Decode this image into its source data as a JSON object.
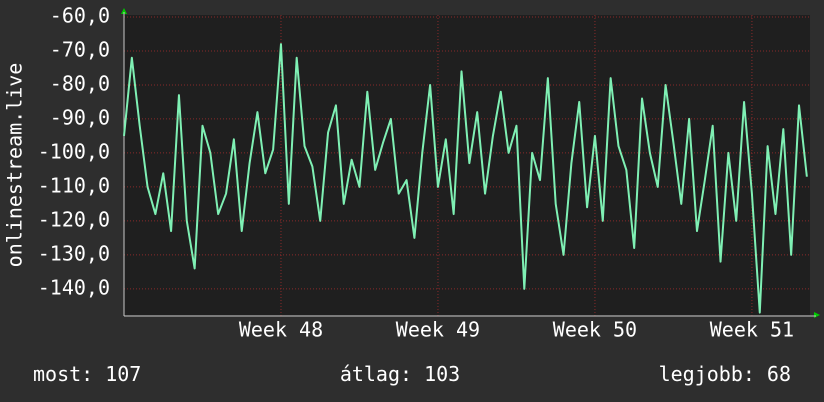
{
  "chart_data": {
    "type": "line",
    "y_label": "onlinestream.live",
    "xlim": [
      47,
      51.37
    ],
    "ylim": [
      -148,
      -60
    ],
    "xticks": [
      {
        "value": 48,
        "label": "Week 48"
      },
      {
        "value": 49,
        "label": "Week 49"
      },
      {
        "value": 50,
        "label": "Week 50"
      },
      {
        "value": 51,
        "label": "Week 51"
      }
    ],
    "yticks": [
      {
        "value": -60,
        "label": "-60,0"
      },
      {
        "value": -70,
        "label": "-70,0"
      },
      {
        "value": -80,
        "label": "-80,0"
      },
      {
        "value": -90,
        "label": "-90,0"
      },
      {
        "value": -100,
        "label": "-100,0"
      },
      {
        "value": -110,
        "label": "-110,0"
      },
      {
        "value": -120,
        "label": "-120,0"
      },
      {
        "value": -130,
        "label": "-130,0"
      },
      {
        "value": -140,
        "label": "-140,0"
      }
    ],
    "grid": true,
    "x": [
      47,
      47.05,
      47.1,
      47.15,
      47.2,
      47.25,
      47.3,
      47.35,
      47.4,
      47.45,
      47.5,
      47.55,
      47.6,
      47.65,
      47.7,
      47.75,
      47.8,
      47.85,
      47.9,
      47.95,
      48,
      48.05,
      48.1,
      48.15,
      48.2,
      48.25,
      48.3,
      48.35,
      48.4,
      48.45,
      48.5,
      48.55,
      48.6,
      48.65,
      48.7,
      48.75,
      48.8,
      48.85,
      48.9,
      48.95,
      49,
      49.05,
      49.1,
      49.15,
      49.2,
      49.25,
      49.3,
      49.35,
      49.4,
      49.45,
      49.5,
      49.55,
      49.6,
      49.65,
      49.7,
      49.75,
      49.8,
      49.85,
      49.9,
      49.95,
      50,
      50.05,
      50.1,
      50.15,
      50.2,
      50.25,
      50.3,
      50.35,
      50.4,
      50.45,
      50.5,
      50.55,
      50.6,
      50.65,
      50.7,
      50.75,
      50.8,
      50.85,
      50.9,
      50.95,
      51,
      51.05,
      51.1,
      51.15,
      51.2,
      51.25,
      51.3,
      51.35
    ],
    "series": [
      {
        "color": "#7ff0b4",
        "values": [
          -95,
          -72,
          -92,
          -110,
          -118,
          -106,
          -123,
          -83,
          -120,
          -134,
          -92,
          -100,
          -118,
          -112,
          -96,
          -123,
          -103,
          -88,
          -106,
          -99,
          -68,
          -115,
          -72,
          -98,
          -104,
          -120,
          -94,
          -86,
          -115,
          -102,
          -110,
          -82,
          -105,
          -97,
          -90,
          -112,
          -108,
          -125,
          -100,
          -80,
          -110,
          -96,
          -118,
          -76,
          -103,
          -88,
          -112,
          -95,
          -82,
          -100,
          -92,
          -140,
          -100,
          -108,
          -78,
          -115,
          -130,
          -103,
          -85,
          -116,
          -95,
          -120,
          -78,
          -98,
          -105,
          -128,
          -84,
          -100,
          -110,
          -80,
          -97,
          -115,
          -90,
          -123,
          -108,
          -92,
          -132,
          -100,
          -120,
          -85,
          -112,
          -147,
          -98,
          -118,
          -93,
          -130,
          -86,
          -107
        ]
      }
    ],
    "stats": [
      {
        "label": "most:",
        "value": 107
      },
      {
        "label": "átlag:",
        "value": 103
      },
      {
        "label": "legjobb:",
        "value": 68
      }
    ]
  }
}
